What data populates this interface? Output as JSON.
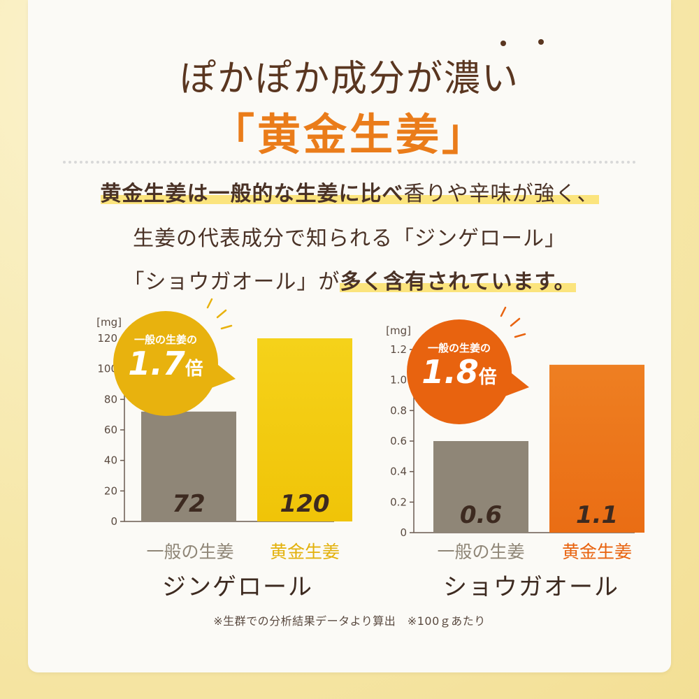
{
  "headline": {
    "line1": "ぽかぽか成分が濃い",
    "line2": "「黄金生姜」"
  },
  "lead": {
    "l1_bold": "黄金生姜は一般的な生姜に比べ",
    "l1_rest": "香りや辛味が強く、",
    "l2": "生姜の代表成分で知られる「ジンゲロール」",
    "l3_rest": "「ショウガオール」が",
    "l3_bold": "多く含有されています。"
  },
  "footnote": "※生群での分析結果データより算出　※100ｇあたり",
  "colors": {
    "brown": "#5a3620",
    "orange_title": "#ea7c1a",
    "gray_bar": "#8f8677",
    "yellow_bar": "#f2cc0e",
    "orange_bar": "#ec7a1c",
    "yellow_badge": "#e8b20e",
    "orange_badge": "#e8630f"
  },
  "chart_data": [
    {
      "type": "bar",
      "title": "ジンゲロール",
      "unit_label": "[mg]",
      "categories": [
        "一般の生姜",
        "黄金生姜"
      ],
      "values": [
        72,
        120
      ],
      "value_labels": [
        "72",
        "120"
      ],
      "ylim": [
        0,
        120
      ],
      "yticks": [
        "0",
        "20",
        "40",
        "60",
        "80",
        "100",
        "120"
      ],
      "ytick_values": [
        0,
        20,
        40,
        60,
        80,
        100,
        120
      ],
      "badge": {
        "caption": "一般の生姜の",
        "value": "1.7",
        "unit": "倍"
      }
    },
    {
      "type": "bar",
      "title": "ショウガオール",
      "unit_label": "[mg]",
      "categories": [
        "一般の生姜",
        "黄金生姜"
      ],
      "values": [
        0.6,
        1.1
      ],
      "value_labels": [
        "0.6",
        "1.1"
      ],
      "ylim": [
        0,
        1.2
      ],
      "yticks": [
        "0",
        "0.2",
        "0.4",
        "0.6",
        "0.8",
        "1.0",
        "1.2"
      ],
      "ytick_values": [
        0,
        0.2,
        0.4,
        0.6,
        0.8,
        1.0,
        1.2
      ],
      "badge": {
        "caption": "一般の生姜の",
        "value": "1.8",
        "unit": "倍"
      }
    }
  ]
}
